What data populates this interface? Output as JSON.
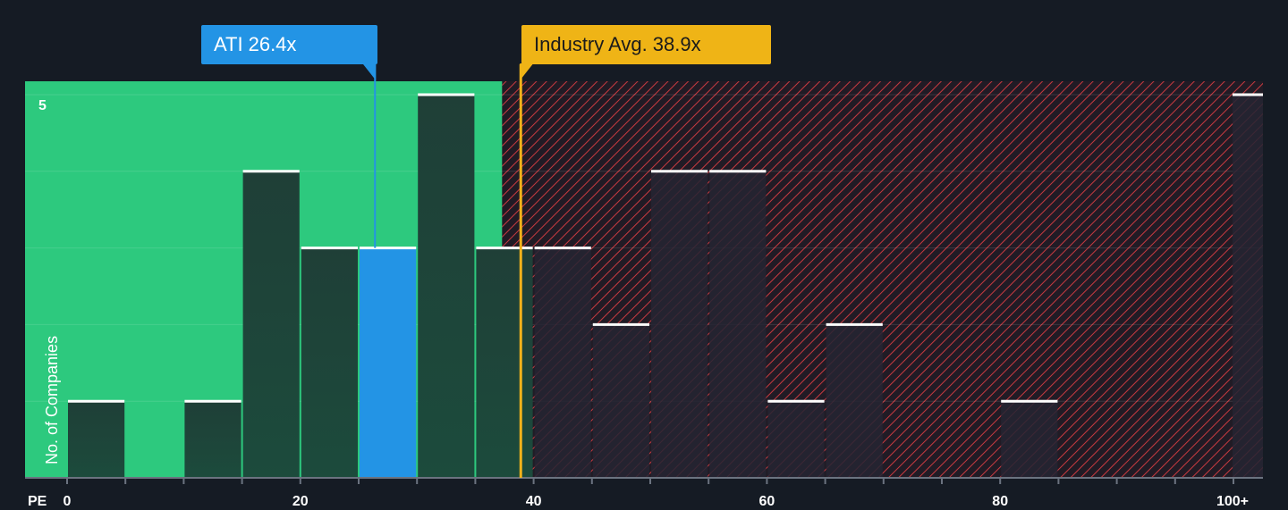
{
  "chart_data": {
    "type": "bar",
    "x_prefix": "PE",
    "ylabel": "No. of Companies",
    "y_tick_labels": [
      "5"
    ],
    "ylim": [
      0,
      5
    ],
    "xlim": [
      0,
      100
    ],
    "x_ticks": [
      0,
      20,
      40,
      60,
      80,
      100
    ],
    "x_tick_labels": [
      "0",
      "20",
      "40",
      "60",
      "80",
      "100+"
    ],
    "bin_width": 5,
    "bins": [
      {
        "x": 0,
        "count": 1
      },
      {
        "x": 5,
        "count": 0
      },
      {
        "x": 10,
        "count": 1
      },
      {
        "x": 15,
        "count": 4
      },
      {
        "x": 20,
        "count": 3
      },
      {
        "x": 25,
        "count": 3,
        "highlight": true
      },
      {
        "x": 30,
        "count": 5
      },
      {
        "x": 35,
        "count": 3
      },
      {
        "x": 40,
        "count": 3
      },
      {
        "x": 45,
        "count": 2
      },
      {
        "x": 50,
        "count": 4
      },
      {
        "x": 55,
        "count": 4
      },
      {
        "x": 60,
        "count": 1
      },
      {
        "x": 65,
        "count": 2
      },
      {
        "x": 70,
        "count": 0
      },
      {
        "x": 75,
        "count": 0
      },
      {
        "x": 80,
        "count": 1
      },
      {
        "x": 85,
        "count": 0
      },
      {
        "x": 90,
        "count": 0
      },
      {
        "x": 95,
        "count": 0
      },
      {
        "x": 100,
        "count": 5,
        "overflow": true
      }
    ],
    "company": {
      "name": "ATI",
      "value_label": "26.4x",
      "value": 26.4
    },
    "industry": {
      "name": "Industry Avg.",
      "value_label": "38.9x",
      "value": 38.9
    },
    "fair_zone_max": 37.3,
    "colors": {
      "background": "#151b24",
      "fair_zone": "#2dc97e",
      "overvalued_bg": "#211b25",
      "hatch": "#c83a40",
      "bar_in_zone": "#1c4b3c",
      "bar_in_zone_top": "#1f3f37",
      "bar_out_zone": "#242432",
      "company_bar": "#2394e5",
      "company_callout": "#2394e5",
      "industry_line": "#f3b21b",
      "industry_callout": "#efb416",
      "cap_line": "#ffffff"
    }
  }
}
